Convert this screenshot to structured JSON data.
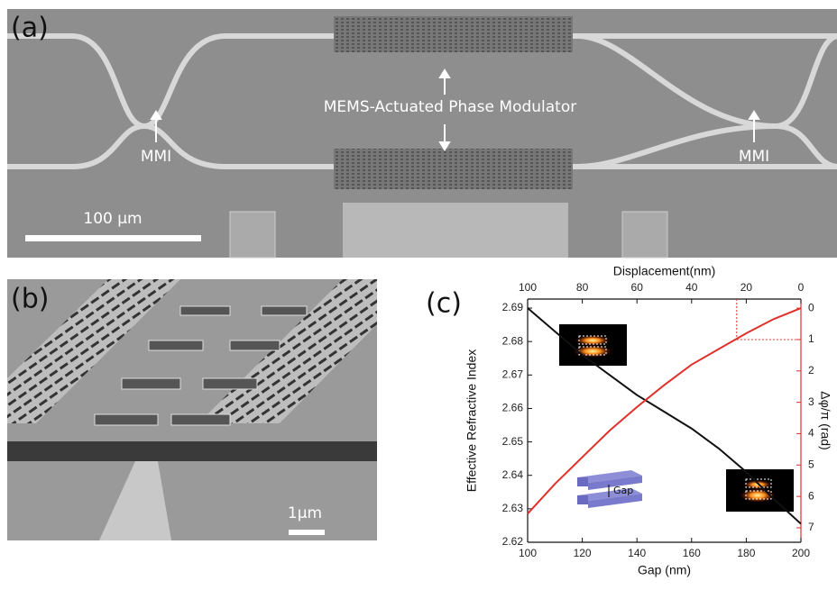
{
  "panels": {
    "a": {
      "label": "(a)",
      "annotation": "MEMS-Actuated Phase Modulator",
      "mmi_labels": [
        "MMI",
        "MMI"
      ],
      "scale_bar": "100 µm"
    },
    "b": {
      "label": "(b)",
      "scale_bar": "1µm"
    },
    "c": {
      "label": "(c)"
    }
  },
  "chart_data": {
    "type": "line",
    "x_label": "Gap (nm)",
    "x2_label": "Displacement(nm)",
    "y_label": "Effective Refractive Index",
    "y2_label": "Δφ/π (rad)",
    "x": [
      100,
      110,
      120,
      130,
      140,
      150,
      160,
      170,
      180,
      190,
      200
    ],
    "series": [
      {
        "color": "#111111",
        "values": [
          2.69,
          2.683,
          2.676,
          2.67,
          2.664,
          2.659,
          2.654,
          2.648,
          2.641,
          2.633,
          2.6255
        ]
      },
      {
        "color": "#e0302a",
        "axis": "y2",
        "values": [
          6.55,
          5.6,
          4.75,
          3.9,
          3.15,
          2.45,
          1.8,
          1.3,
          0.8,
          0.35,
          0
        ]
      }
    ],
    "xlim": [
      100,
      200
    ],
    "xticks": [
      100,
      120,
      140,
      160,
      180,
      200
    ],
    "x2lim": [
      100,
      0
    ],
    "x2ticks": [
      100,
      80,
      60,
      40,
      20,
      0
    ],
    "ylim": [
      2.62,
      2.6927
    ],
    "yticks": [
      2.62,
      2.63,
      2.64,
      2.65,
      2.66,
      2.67,
      2.68,
      2.69
    ],
    "y2lim": [
      7.46,
      -0.29
    ],
    "y2ticks": [
      0,
      1,
      2,
      3,
      4,
      5,
      6,
      7
    ],
    "guide": {
      "x": 176.5,
      "y2": 1
    },
    "annotations": [
      "Gap"
    ]
  }
}
